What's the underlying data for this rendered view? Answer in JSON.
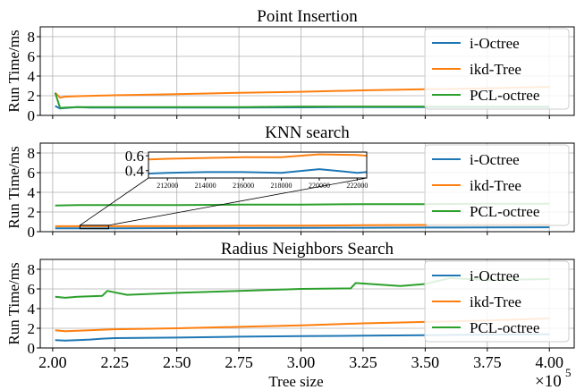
{
  "figure": {
    "xlabel": "Tree size",
    "x_multiplier": "×10",
    "x_multiplier_exp": "5"
  },
  "chart_data": [
    {
      "type": "line",
      "title": "Point Insertion",
      "xlabel": "",
      "ylabel": "Run Time/ms",
      "xlim": [
        195000,
        410000
      ],
      "ylim": [
        0,
        9
      ],
      "yticks": [
        0,
        2,
        4,
        6,
        8
      ],
      "grid": true,
      "legend": "top-right",
      "series": [
        {
          "name": "i-Octree",
          "color": "#1f77b4",
          "x": [
            201000,
            203000,
            205000,
            210000,
            215000,
            225000,
            250000,
            275000,
            300000,
            325000,
            350000,
            375000,
            400000
          ],
          "y": [
            0.95,
            0.7,
            0.75,
            0.85,
            0.8,
            0.8,
            0.8,
            0.8,
            0.82,
            0.85,
            0.85,
            0.85,
            0.85
          ]
        },
        {
          "name": "ikd-Tree",
          "color": "#ff7f0e",
          "x": [
            201000,
            203000,
            205000,
            210000,
            225000,
            250000,
            275000,
            300000,
            325000,
            350000,
            375000,
            400000
          ],
          "y": [
            2.3,
            1.8,
            1.9,
            1.95,
            2.05,
            2.15,
            2.3,
            2.4,
            2.55,
            2.65,
            2.75,
            2.9
          ]
        },
        {
          "name": "PCL-octree",
          "color": "#2ca02c",
          "x": [
            201000,
            203000,
            205000,
            210000,
            225000,
            250000,
            275000,
            300000,
            325000,
            350000,
            375000,
            400000
          ],
          "y": [
            2.3,
            0.75,
            0.8,
            0.85,
            0.85,
            0.85,
            0.85,
            0.9,
            0.9,
            0.9,
            0.9,
            0.9
          ]
        }
      ]
    },
    {
      "type": "line",
      "title": "KNN search",
      "xlabel": "",
      "ylabel": "Run Time/ms",
      "xlim": [
        195000,
        410000
      ],
      "ylim": [
        0,
        9
      ],
      "yticks": [
        0,
        2,
        4,
        6,
        8
      ],
      "grid": true,
      "legend": "top-right",
      "series": [
        {
          "name": "i-Octree",
          "color": "#1f77b4",
          "x": [
            201000,
            225000,
            250000,
            275000,
            300000,
            325000,
            350000,
            375000,
            400000
          ],
          "y": [
            0.35,
            0.35,
            0.36,
            0.37,
            0.38,
            0.4,
            0.42,
            0.43,
            0.45
          ]
        },
        {
          "name": "ikd-Tree",
          "color": "#ff7f0e",
          "x": [
            201000,
            225000,
            250000,
            275000,
            300000,
            325000,
            350000,
            375000,
            400000
          ],
          "y": [
            0.55,
            0.55,
            0.57,
            0.6,
            0.62,
            0.65,
            0.68,
            0.7,
            0.72
          ]
        },
        {
          "name": "PCL-octree",
          "color": "#2ca02c",
          "x": [
            201000,
            210000,
            225000,
            250000,
            275000,
            300000,
            325000,
            350000,
            375000,
            400000
          ],
          "y": [
            2.65,
            2.7,
            2.7,
            2.7,
            2.75,
            2.75,
            2.8,
            2.8,
            2.85,
            2.85
          ]
        }
      ],
      "inset": {
        "xlim": [
          211000,
          222500
        ],
        "ylim": [
          0.3,
          0.65
        ],
        "xticks": [
          212000,
          214000,
          216000,
          218000,
          220000,
          222000
        ],
        "yticks": [
          0.4,
          0.6
        ],
        "series": [
          {
            "name": "i-Octree",
            "color": "#1f77b4",
            "x": [
              211000,
              212000,
              214000,
              216000,
              218000,
              220000,
              222000,
              222500
            ],
            "y": [
              0.36,
              0.37,
              0.38,
              0.38,
              0.37,
              0.42,
              0.37,
              0.38
            ]
          },
          {
            "name": "ikd-Tree",
            "color": "#ff7f0e",
            "x": [
              211000,
              212000,
              214000,
              216000,
              218000,
              220000,
              222000,
              222500
            ],
            "y": [
              0.55,
              0.56,
              0.57,
              0.58,
              0.58,
              0.62,
              0.61,
              0.6
            ]
          }
        ]
      }
    },
    {
      "type": "line",
      "title": "Radius Neighbors Search",
      "xlabel": "Tree size",
      "ylabel": "Run Time/ms",
      "xlim": [
        195000,
        410000
      ],
      "ylim": [
        0,
        9
      ],
      "yticks": [
        0,
        2,
        4,
        6,
        8
      ],
      "xticks": [
        200000,
        225000,
        250000,
        275000,
        300000,
        325000,
        350000,
        375000,
        400000
      ],
      "xticklabels": [
        "2.00",
        "2.25",
        "2.50",
        "2.75",
        "3.00",
        "3.25",
        "3.50",
        "3.75",
        "4.00"
      ],
      "grid": true,
      "legend": "top-right",
      "series": [
        {
          "name": "i-Octree",
          "color": "#1f77b4",
          "x": [
            201000,
            205000,
            210000,
            215000,
            220000,
            225000,
            250000,
            275000,
            300000,
            325000,
            350000,
            375000,
            400000
          ],
          "y": [
            0.8,
            0.75,
            0.8,
            0.85,
            0.95,
            1.0,
            1.05,
            1.15,
            1.2,
            1.25,
            1.3,
            1.35,
            1.4
          ]
        },
        {
          "name": "ikd-Tree",
          "color": "#ff7f0e",
          "x": [
            201000,
            205000,
            210000,
            225000,
            250000,
            275000,
            300000,
            325000,
            350000,
            375000,
            400000
          ],
          "y": [
            1.8,
            1.7,
            1.75,
            1.9,
            2.0,
            2.15,
            2.3,
            2.5,
            2.65,
            2.8,
            3.0
          ]
        },
        {
          "name": "PCL-octree",
          "color": "#2ca02c",
          "x": [
            201000,
            205000,
            210000,
            220000,
            222000,
            230000,
            250000,
            275000,
            300000,
            320000,
            322000,
            340000,
            350000,
            360000,
            375000,
            400000
          ],
          "y": [
            5.2,
            5.1,
            5.2,
            5.3,
            5.8,
            5.4,
            5.6,
            5.8,
            6.0,
            6.05,
            6.6,
            6.3,
            6.5,
            7.1,
            6.9,
            7.0
          ]
        }
      ]
    }
  ]
}
